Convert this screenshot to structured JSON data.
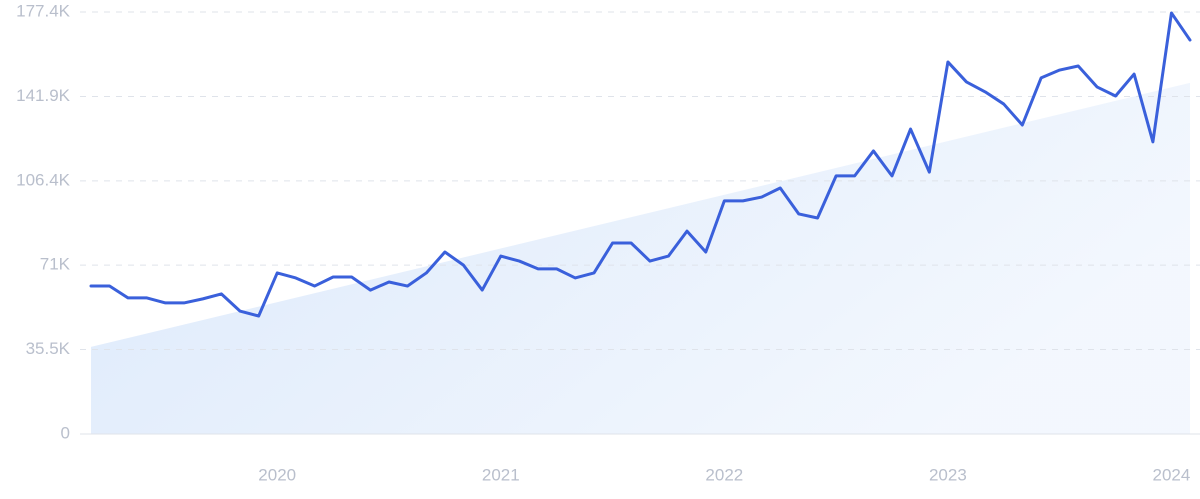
{
  "chart_data": {
    "type": "line",
    "x": [
      2019.167,
      2019.25,
      2019.333,
      2019.417,
      2019.5,
      2019.583,
      2019.667,
      2019.75,
      2019.833,
      2019.917,
      2020,
      2020.083,
      2020.167,
      2020.25,
      2020.333,
      2020.417,
      2020.5,
      2020.583,
      2020.667,
      2020.75,
      2020.833,
      2020.917,
      2021,
      2021.083,
      2021.167,
      2021.25,
      2021.333,
      2021.417,
      2021.5,
      2021.583,
      2021.667,
      2021.75,
      2021.833,
      2021.917,
      2022,
      2022.083,
      2022.167,
      2022.25,
      2022.333,
      2022.417,
      2022.5,
      2022.583,
      2022.667,
      2022.75,
      2022.833,
      2022.917,
      2023,
      2023.083,
      2023.167,
      2023.25,
      2023.333,
      2023.417,
      2023.5,
      2023.583,
      2023.667,
      2023.75,
      2023.833,
      2023.917,
      2024,
      2024.083
    ],
    "series": [
      {
        "color": "#3a60db",
        "values": [
          62200,
          62200,
          57200,
          57200,
          55100,
          55100,
          56800,
          58900,
          51700,
          49600,
          67700,
          65600,
          62200,
          66000,
          66000,
          60500,
          63900,
          62200,
          67700,
          76500,
          71000,
          60500,
          74800,
          72700,
          69400,
          69400,
          65600,
          67700,
          80300,
          80300,
          72700,
          74800,
          85300,
          76500,
          98000,
          98000,
          99600,
          103400,
          92500,
          90800,
          108500,
          108500,
          119000,
          108500,
          128200,
          110100,
          156400,
          148000,
          143800,
          138700,
          129900,
          149700,
          153000,
          154700,
          145900,
          142100,
          151300,
          122800,
          177000,
          165600
        ]
      }
    ],
    "trend": [
      36600,
      147600
    ],
    "trend_color": "#dce9fb",
    "xlim": [
      2019.167,
      2024.083
    ],
    "xticks": [
      2020,
      2021,
      2022,
      2023,
      2024
    ],
    "ylim": [
      0,
      177400
    ],
    "yticks": [
      0,
      {
        "value": 35500,
        "label": "35.5K"
      },
      {
        "value": 71000,
        "label": "71K"
      },
      {
        "value": 106400,
        "label": "106.4K"
      },
      {
        "value": 141900,
        "label": "141.9K"
      },
      {
        "value": 177400,
        "label": "177.4K"
      }
    ],
    "grid": true
  }
}
